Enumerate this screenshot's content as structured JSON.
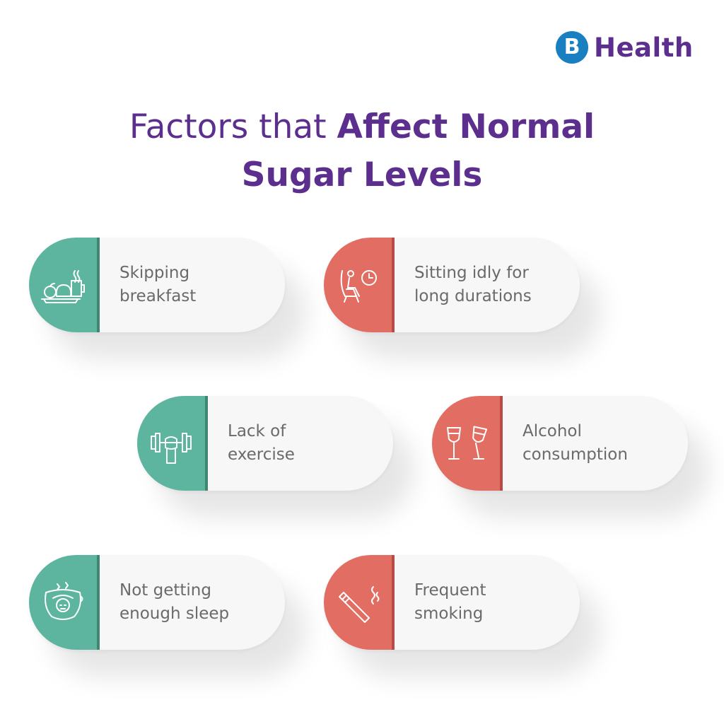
{
  "brand": {
    "mark": "B",
    "name": "Health"
  },
  "title": {
    "light": "Factors that ",
    "bold_line1": "Affect Normal",
    "bold_line2": "Sugar Levels"
  },
  "colors": {
    "purple": "#5c2f8e",
    "teal": "#5db5a0",
    "coral": "#e26d63",
    "brand_blue": "#1a7fc1"
  },
  "factors": [
    {
      "line1": "Skipping",
      "line2": "breakfast",
      "icon": "breakfast-icon",
      "color": "teal"
    },
    {
      "line1": "Sitting idly for",
      "line2": "long durations",
      "icon": "sitting-clock-icon",
      "color": "coral"
    },
    {
      "line1": "Lack of",
      "line2": "exercise",
      "icon": "dumbbell-icon",
      "color": "teal"
    },
    {
      "line1": "Alcohol",
      "line2": "consumption",
      "icon": "wine-glasses-icon",
      "color": "coral"
    },
    {
      "line1": "Not getting",
      "line2": "enough sleep",
      "icon": "tired-face-icon",
      "color": "teal"
    },
    {
      "line1": "Frequent",
      "line2": "smoking",
      "icon": "cigarette-icon",
      "color": "coral"
    }
  ]
}
